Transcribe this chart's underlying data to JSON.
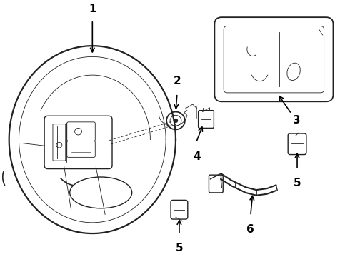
{
  "background_color": "#ffffff",
  "line_color": "#222222",
  "fig_width": 4.9,
  "fig_height": 3.6,
  "dpi": 100,
  "lw": 1.0,
  "lw_thick": 1.6,
  "lw_thin": 0.6,
  "label_fs": 10
}
